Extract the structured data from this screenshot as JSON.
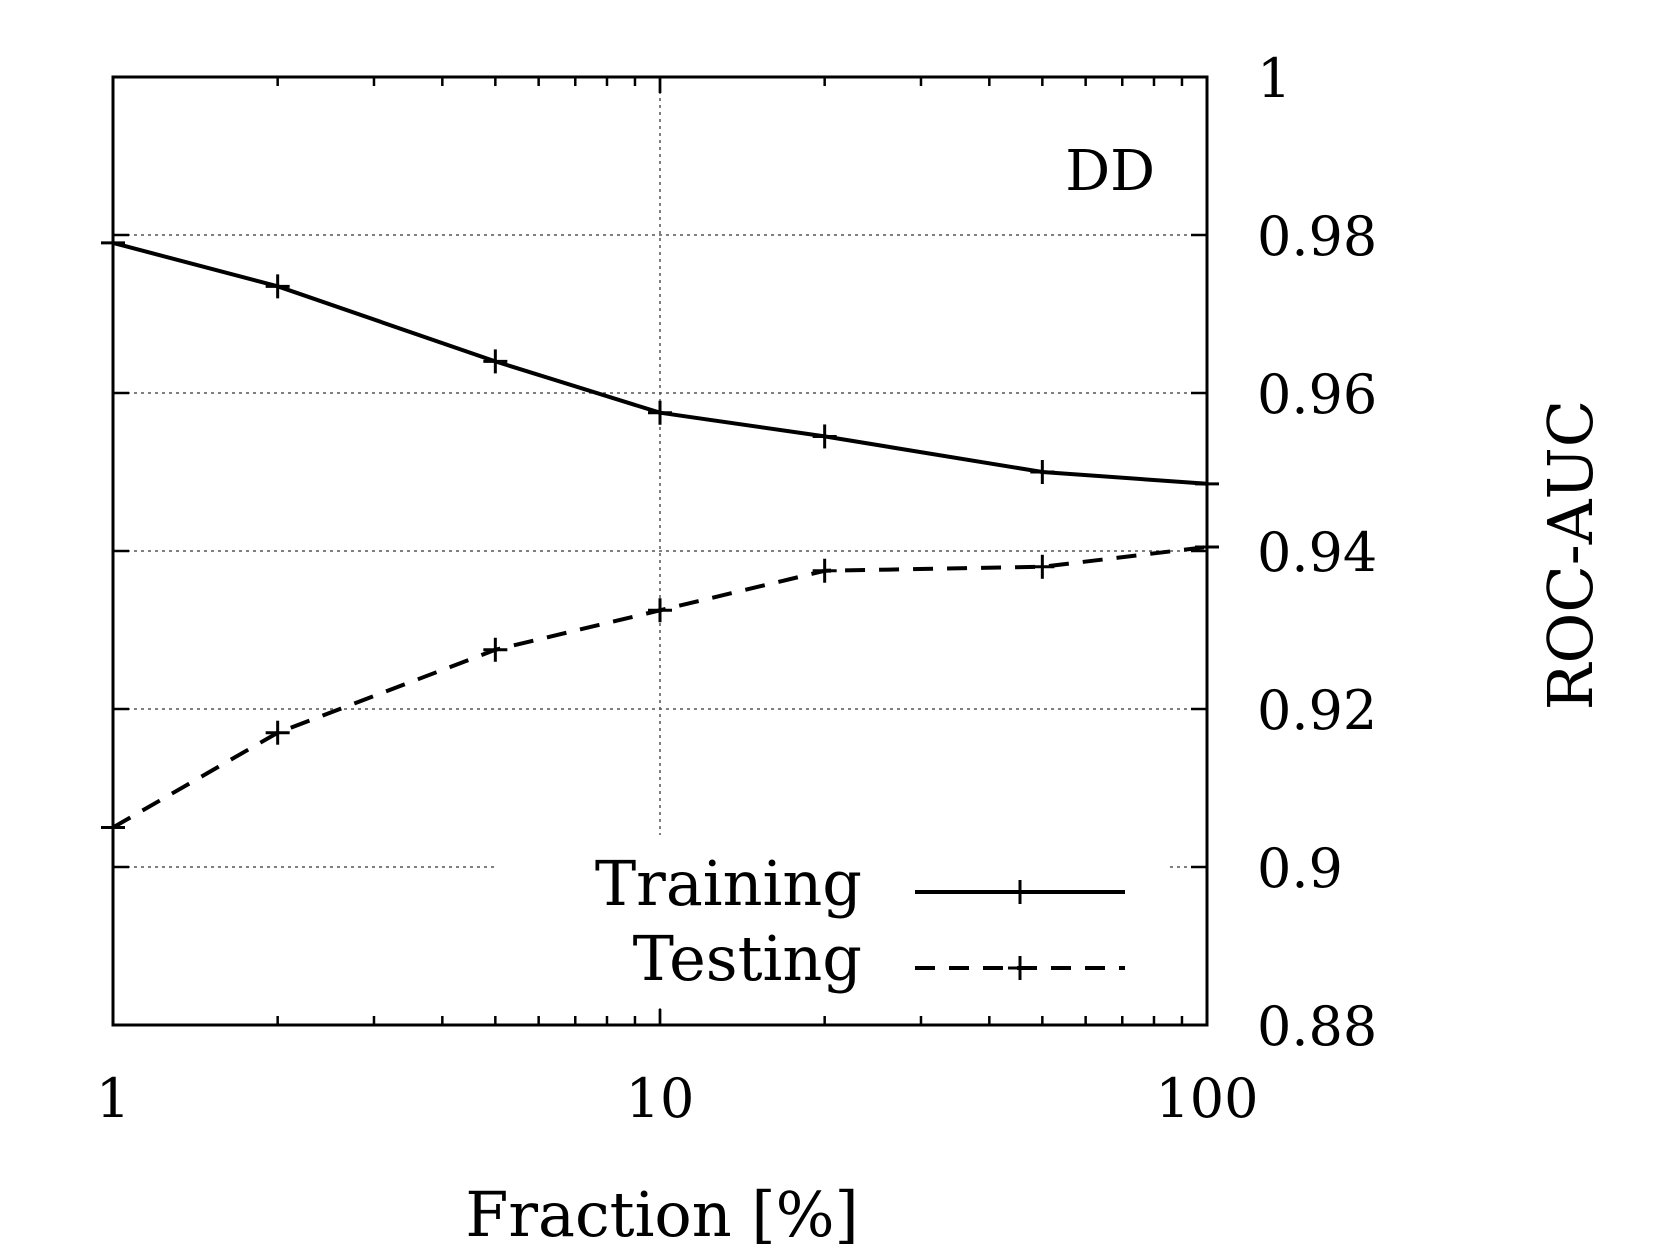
{
  "chart_data": {
    "type": "line",
    "title": "",
    "panel_label": "DD",
    "xlabel": "Fraction [%]",
    "ylabel": "ROC-AUC",
    "x_scale": "log",
    "xlim": [
      1,
      100
    ],
    "ylim": [
      0.88,
      1.0
    ],
    "x_ticks": [
      1,
      10,
      100
    ],
    "x_tick_labels": [
      "1",
      "10",
      "100"
    ],
    "y_ticks": [
      0.88,
      0.9,
      0.92,
      0.94,
      0.96,
      0.98,
      1.0
    ],
    "y_tick_labels": [
      "0.88",
      "0.9",
      "0.92",
      "0.94",
      "0.96",
      "0.98",
      "1"
    ],
    "y_axis_side": "right",
    "grid": true,
    "legend_position": "bottom-right",
    "x": [
      1,
      2,
      5,
      10,
      20,
      50,
      100
    ],
    "series": [
      {
        "name": "Training",
        "style": "solid",
        "marker": "plus",
        "values": [
          0.979,
          0.9735,
          0.964,
          0.9575,
          0.9545,
          0.95,
          0.9485
        ]
      },
      {
        "name": "Testing",
        "style": "dashed",
        "marker": "plus",
        "values": [
          0.905,
          0.917,
          0.9275,
          0.9325,
          0.9375,
          0.938,
          0.9405
        ]
      }
    ],
    "colors": {
      "lines": "#000000",
      "grid": "#555555"
    }
  }
}
